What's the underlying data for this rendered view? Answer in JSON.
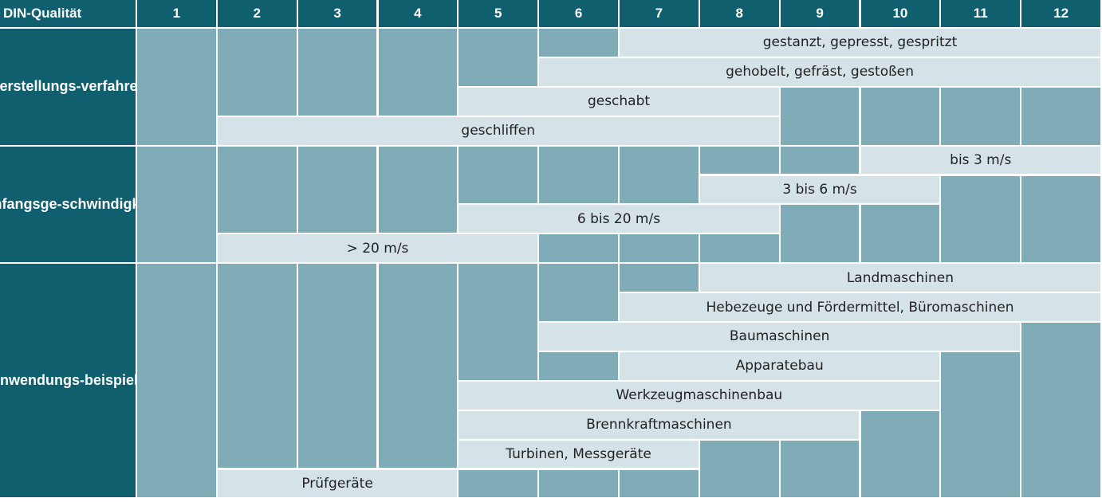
{
  "chart_data": {
    "type": "table",
    "corner_label": "DIN-Qualität",
    "columns": [
      "1",
      "2",
      "3",
      "4",
      "5",
      "6",
      "7",
      "8",
      "9",
      "10",
      "11",
      "12"
    ],
    "groups": [
      {
        "label": "Herstellungs-\nverfahren",
        "bars": [
          {
            "label": "gestanzt, gepresst, gespritzt",
            "from": 7,
            "to": 12
          },
          {
            "label": "gehobelt, gefräst, gestoßen",
            "from": 6,
            "to": 12
          },
          {
            "label": "geschabt",
            "from": 5,
            "to": 8
          },
          {
            "label": "geschliffen",
            "from": 2,
            "to": 8
          }
        ]
      },
      {
        "label": "Umfangsge-\nschwindigkeit",
        "bars": [
          {
            "label": "bis 3 m/s",
            "from": 10,
            "to": 12
          },
          {
            "label": "3 bis 6 m/s",
            "from": 8,
            "to": 10
          },
          {
            "label": "6 bis 20 m/s",
            "from": 5,
            "to": 8
          },
          {
            "label": "> 20 m/s",
            "from": 2,
            "to": 5
          }
        ]
      },
      {
        "label": "Anwendungs-\nbeispiele",
        "bars": [
          {
            "label": "Landmaschinen",
            "from": 8,
            "to": 12
          },
          {
            "label": "Hebezeuge und Fördermittel, Büromaschinen",
            "from": 7,
            "to": 12
          },
          {
            "label": "Baumaschinen",
            "from": 6,
            "to": 11
          },
          {
            "label": "Apparatebau",
            "from": 7,
            "to": 10
          },
          {
            "label": "Werkzeugmaschinenbau",
            "from": 5,
            "to": 10
          },
          {
            "label": "Brennkraftmaschinen",
            "from": 5,
            "to": 9
          },
          {
            "label": "Turbinen, Messgeräte",
            "from": 5,
            "to": 7
          },
          {
            "label": "Prüfgeräte",
            "from": 2,
            "to": 4
          }
        ]
      }
    ],
    "colors": {
      "header": "#0f5f6e",
      "background": "#7facb6",
      "bar": "#d5e3e8"
    }
  }
}
